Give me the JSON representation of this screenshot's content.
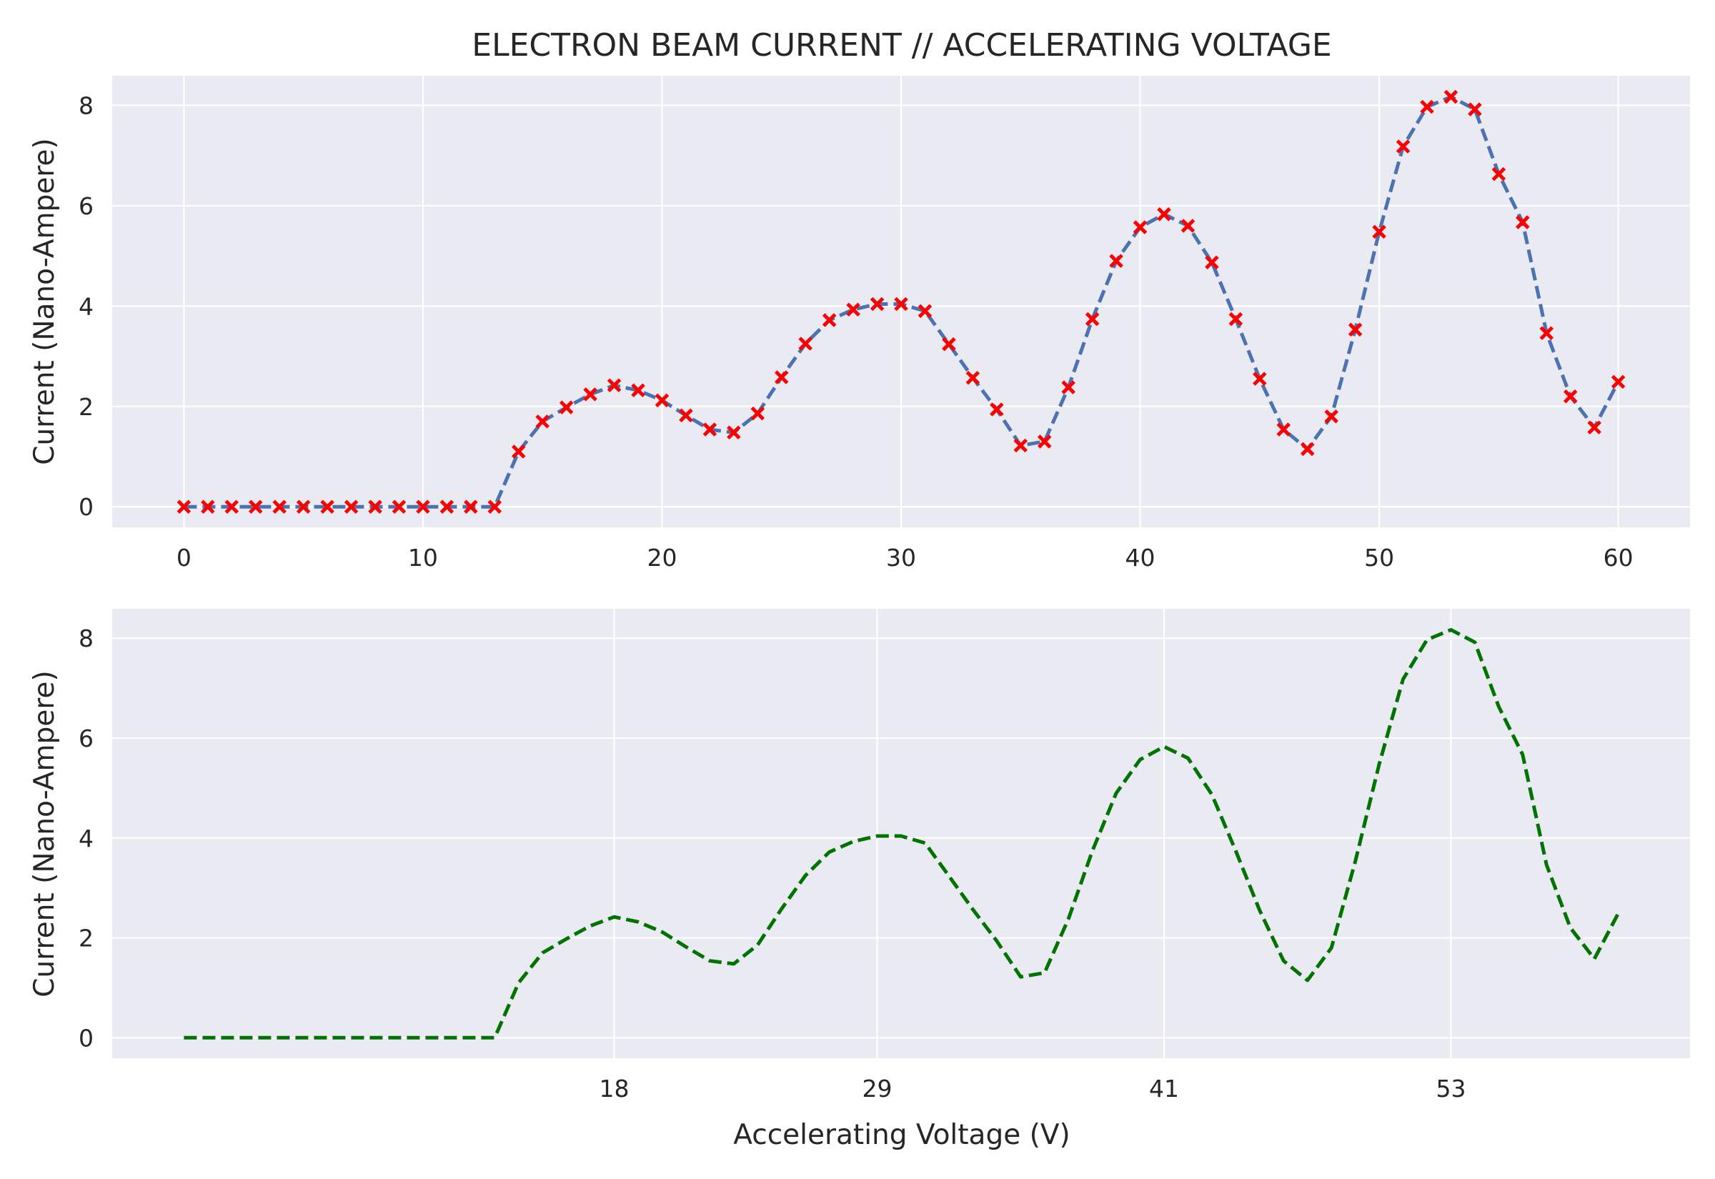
{
  "chart_data": [
    {
      "type": "line",
      "title": "ELECTRON BEAM CURRENT // ACCELERATING VOLTAGE",
      "xlabel": "",
      "ylabel": "Current (Nano-Ampere)",
      "xlim": [
        -3,
        63
      ],
      "ylim": [
        -0.41,
        8.59
      ],
      "xticks": [
        0,
        10,
        20,
        30,
        40,
        50,
        60
      ],
      "xtick_labels": [
        "0",
        "10",
        "20",
        "30",
        "40",
        "50",
        "60"
      ],
      "yticks": [
        0,
        2,
        4,
        6,
        8
      ],
      "ytick_labels": [
        "0",
        "2",
        "4",
        "6",
        "8"
      ],
      "grid": true,
      "series": [
        {
          "line_style": "dashed",
          "line_color": "#4c72b0",
          "marker": "x",
          "marker_color": "#ff0000",
          "x": [
            0,
            1,
            2,
            3,
            4,
            5,
            6,
            7,
            8,
            9,
            10,
            11,
            12,
            13,
            14,
            15,
            16,
            17,
            18,
            19,
            20,
            21,
            22,
            23,
            24,
            25,
            26,
            27,
            28,
            29,
            30,
            31,
            32,
            33,
            34,
            35,
            36,
            37,
            38,
            39,
            40,
            41,
            42,
            43,
            44,
            45,
            46,
            47,
            48,
            49,
            50,
            51,
            52,
            53,
            54,
            55,
            56,
            57,
            58,
            59,
            60
          ],
          "values": [
            0,
            0,
            0,
            0,
            0,
            0,
            0,
            0,
            0,
            0,
            0,
            0,
            0,
            0,
            1.1,
            1.7,
            1.98,
            2.24,
            2.42,
            2.32,
            2.12,
            1.82,
            1.54,
            1.48,
            1.86,
            2.58,
            3.25,
            3.72,
            3.93,
            4.04,
            4.04,
            3.9,
            3.24,
            2.57,
            1.94,
            1.22,
            1.3,
            2.38,
            3.74,
            4.9,
            5.57,
            5.83,
            5.6,
            4.87,
            3.74,
            2.55,
            1.54,
            1.15,
            1.8,
            3.53,
            5.48,
            7.18,
            7.97,
            8.17,
            7.92,
            6.63,
            5.67,
            3.46,
            2.2,
            1.58,
            2.49
          ]
        }
      ]
    },
    {
      "type": "line",
      "title": "",
      "xlabel": "Accelerating Voltage (V)",
      "ylabel": "Current (Nano-Ampere)",
      "xlim": [
        -3,
        63
      ],
      "ylim": [
        -0.41,
        8.59
      ],
      "xticks": [
        18,
        29,
        41,
        53
      ],
      "xtick_labels": [
        "18",
        "29",
        "41",
        "53"
      ],
      "yticks": [
        0,
        2,
        4,
        6,
        8
      ],
      "ytick_labels": [
        "0",
        "2",
        "4",
        "6",
        "8"
      ],
      "grid": true,
      "series": [
        {
          "line_style": "dashed",
          "line_color": "#007300",
          "marker": "none",
          "x": [
            0,
            1,
            2,
            3,
            4,
            5,
            6,
            7,
            8,
            9,
            10,
            11,
            12,
            13,
            14,
            15,
            16,
            17,
            18,
            19,
            20,
            21,
            22,
            23,
            24,
            25,
            26,
            27,
            28,
            29,
            30,
            31,
            32,
            33,
            34,
            35,
            36,
            37,
            38,
            39,
            40,
            41,
            42,
            43,
            44,
            45,
            46,
            47,
            48,
            49,
            50,
            51,
            52,
            53,
            54,
            55,
            56,
            57,
            58,
            59,
            60
          ],
          "values": [
            0,
            0,
            0,
            0,
            0,
            0,
            0,
            0,
            0,
            0,
            0,
            0,
            0,
            0,
            1.1,
            1.7,
            1.98,
            2.24,
            2.42,
            2.32,
            2.12,
            1.82,
            1.54,
            1.48,
            1.86,
            2.58,
            3.25,
            3.72,
            3.93,
            4.04,
            4.04,
            3.9,
            3.24,
            2.57,
            1.94,
            1.22,
            1.3,
            2.38,
            3.74,
            4.9,
            5.57,
            5.83,
            5.6,
            4.87,
            3.74,
            2.55,
            1.54,
            1.15,
            1.8,
            3.53,
            5.48,
            7.18,
            7.97,
            8.17,
            7.92,
            6.63,
            5.67,
            3.46,
            2.2,
            1.58,
            2.49
          ]
        }
      ]
    }
  ],
  "colors": {
    "axes_background": "#eaeaf2",
    "grid": "#ffffff",
    "text": "#262626"
  }
}
